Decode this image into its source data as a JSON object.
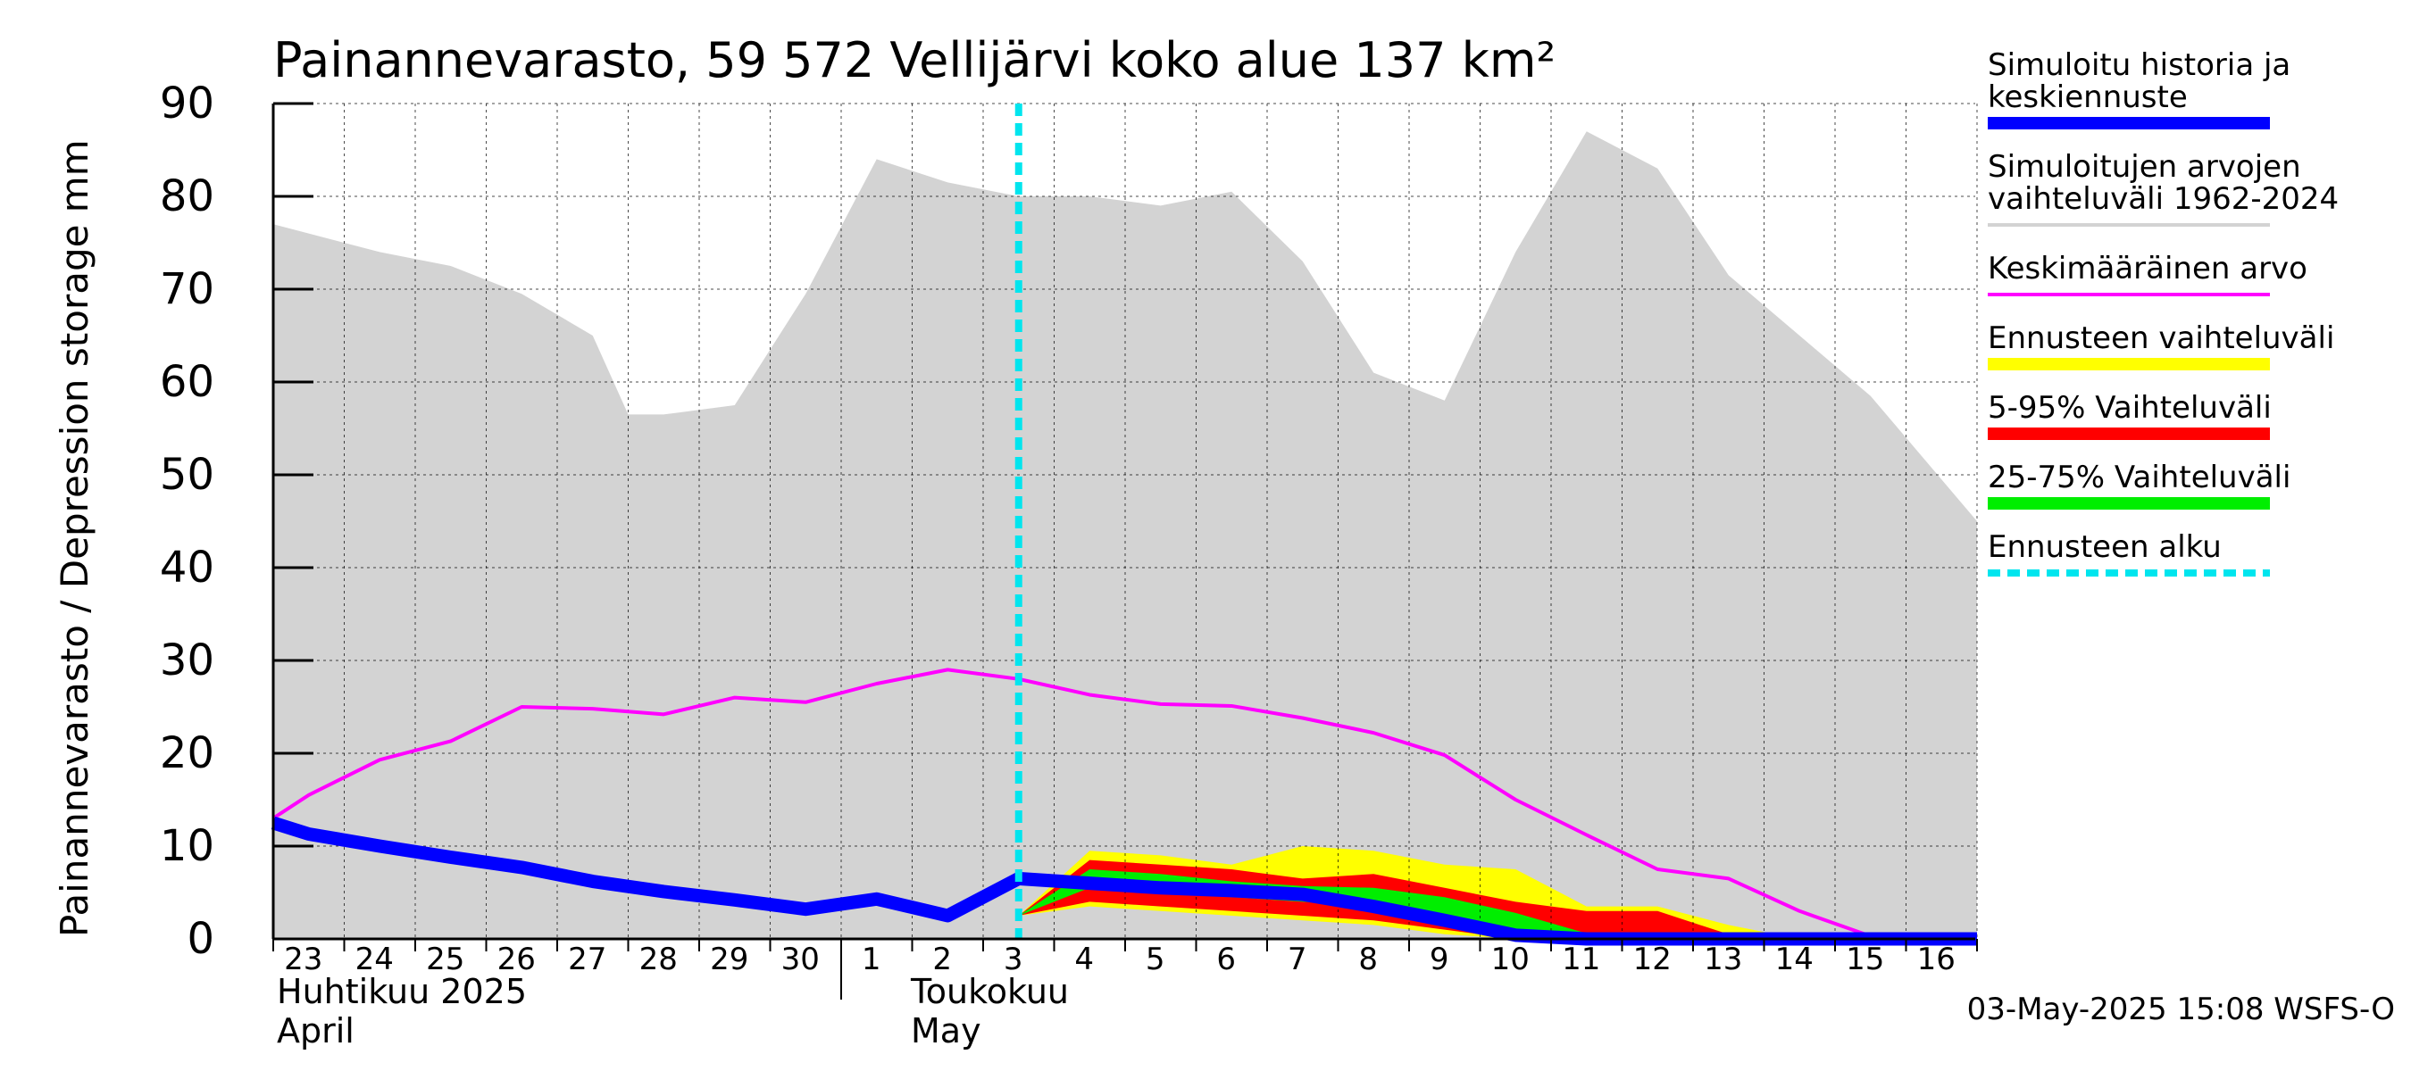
{
  "chart_data": {
    "type": "area",
    "title": "Painannevarasto, 59 572 Vellijärvi koko alue 137 km²",
    "ylabel": "Painannevarasto / Depression storage    mm",
    "ylim": [
      0,
      90
    ],
    "yticks": [
      0,
      10,
      20,
      30,
      40,
      50,
      60,
      70,
      80,
      90
    ],
    "grid": true,
    "legend_position": "right",
    "x_days": [
      "23",
      "24",
      "25",
      "26",
      "27",
      "28",
      "29",
      "30",
      "1",
      "2",
      "3",
      "4",
      "5",
      "6",
      "7",
      "8",
      "9",
      "10",
      "11",
      "12",
      "13",
      "14",
      "15",
      "16"
    ],
    "month_labels": [
      {
        "line1": "Huhtikuu  2025",
        "line2": "April"
      },
      {
        "line1": "Toukokuu",
        "line2": "May"
      }
    ],
    "forecast_start": "3",
    "timestamp": "03-May-2025 15:08 WSFS-O",
    "series": [
      {
        "name": "Simuloitujen arvojen vaihteluväli 1962-2024",
        "kind": "band",
        "color": "#d3d3d3",
        "x": [
          -0.5,
          0,
          1,
          2,
          3,
          4,
          4.5,
          5,
          6,
          7,
          8,
          9,
          10,
          11,
          12,
          13,
          14,
          15,
          16,
          17,
          18,
          19,
          20,
          21,
          22,
          23.5
        ],
        "upper": [
          77,
          76,
          74,
          72.5,
          69.5,
          65,
          56.5,
          56.5,
          57.5,
          69.5,
          84,
          81.5,
          80,
          80,
          79,
          80.5,
          73,
          61,
          58,
          74,
          87,
          83,
          71.5,
          65,
          58.5,
          45
        ],
        "lower": [
          0,
          0,
          0,
          0,
          0,
          0,
          0,
          0,
          0,
          0,
          0,
          0,
          0,
          0,
          0,
          0,
          0,
          0,
          0,
          0,
          0,
          0,
          0,
          0,
          0,
          0
        ]
      },
      {
        "name": "Ennusteen vaihteluväli",
        "kind": "band",
        "color": "#ffff00",
        "x": [
          10,
          11,
          12,
          13,
          14,
          15,
          16,
          17,
          18,
          19,
          20,
          21,
          22,
          23.5
        ],
        "upper": [
          2.5,
          9.5,
          9,
          8,
          10,
          9.5,
          8,
          7.5,
          3.5,
          3.5,
          1.5,
          0,
          0,
          0
        ],
        "lower": [
          2.5,
          3.5,
          3,
          2.5,
          2,
          1.5,
          0.5,
          0,
          0,
          0,
          0,
          0,
          0,
          0
        ]
      },
      {
        "name": "5-95% Vaihteluväli",
        "kind": "band",
        "color": "#ff0000",
        "x": [
          10,
          11,
          12,
          13,
          14,
          15,
          16,
          17,
          18,
          19,
          20,
          21,
          22,
          23.5
        ],
        "upper": [
          2.5,
          8.5,
          8,
          7.5,
          6.5,
          7,
          5.5,
          4,
          3,
          3,
          0.5,
          0,
          0,
          0
        ],
        "lower": [
          2.5,
          4,
          3.5,
          3,
          2.5,
          2,
          1,
          0,
          0,
          0,
          0,
          0,
          0,
          0
        ]
      },
      {
        "name": "25-75% Vaihteluväli",
        "kind": "band",
        "color": "#00ee00",
        "x": [
          10,
          11,
          12,
          13,
          14,
          15,
          16,
          17,
          18,
          19,
          20,
          21,
          22,
          23.5
        ],
        "upper": [
          2.5,
          7.5,
          7,
          6.2,
          5.7,
          5.5,
          4.5,
          2.8,
          0.6,
          0,
          0,
          0,
          0,
          0
        ],
        "lower": [
          2.5,
          5.5,
          5,
          4.5,
          4,
          3.5,
          2.5,
          1,
          0,
          0,
          0,
          0,
          0,
          0
        ]
      },
      {
        "name": "Keskimääräinen arvo",
        "kind": "line",
        "color": "#ff00ff",
        "x": [
          -0.5,
          0,
          1,
          2,
          3,
          4,
          5,
          6,
          7,
          8,
          9,
          10,
          11,
          12,
          13,
          14,
          15,
          16,
          17,
          18,
          19,
          20,
          21,
          22,
          23,
          23.5
        ],
        "values": [
          13,
          15.5,
          19.3,
          21.3,
          25,
          24.8,
          24.2,
          26,
          25.5,
          27.5,
          29,
          28,
          26.3,
          25.3,
          25.1,
          23.8,
          22.2,
          19.8,
          15,
          11.2,
          7.5,
          6.5,
          3,
          0.3,
          0.3,
          0.2
        ]
      },
      {
        "name": "Simuloitu historia ja keskiennuste",
        "kind": "line",
        "color": "#0000ff",
        "x": [
          -0.5,
          0,
          1,
          2,
          3,
          4,
          5,
          6,
          7,
          8,
          9,
          10,
          11,
          12,
          13,
          14,
          15,
          16,
          17,
          18,
          19,
          20,
          21,
          22,
          23,
          23.5
        ],
        "values": [
          12.5,
          11.3,
          10,
          8.8,
          7.7,
          6.2,
          5.1,
          4.2,
          3.2,
          4.3,
          2.5,
          6.5,
          6,
          5.5,
          5.2,
          4.8,
          3.5,
          2,
          0.4,
          0,
          0,
          0,
          0,
          0,
          0,
          0
        ]
      }
    ]
  },
  "legend": [
    {
      "label_lines": [
        "Simuloitu historia ja",
        "keskiennuste"
      ],
      "color": "#0000ff",
      "style": "thick"
    },
    {
      "label_lines": [
        "Simuloitujen arvojen",
        "vaihteluväli 1962-2024"
      ],
      "color": "#d3d3d3",
      "style": "thin"
    },
    {
      "label_lines": [
        "Keskimääräinen arvo"
      ],
      "color": "#ff00ff",
      "style": "thin"
    },
    {
      "label_lines": [
        "Ennusteen vaihteluväli"
      ],
      "color": "#ffff00",
      "style": "thick"
    },
    {
      "label_lines": [
        "5-95% Vaihteluväli"
      ],
      "color": "#ff0000",
      "style": "thick"
    },
    {
      "label_lines": [
        "25-75% Vaihteluväli"
      ],
      "color": "#00ee00",
      "style": "thick"
    },
    {
      "label_lines": [
        "Ennusteen alku"
      ],
      "color": "#00e5ee",
      "style": "dashed"
    }
  ]
}
